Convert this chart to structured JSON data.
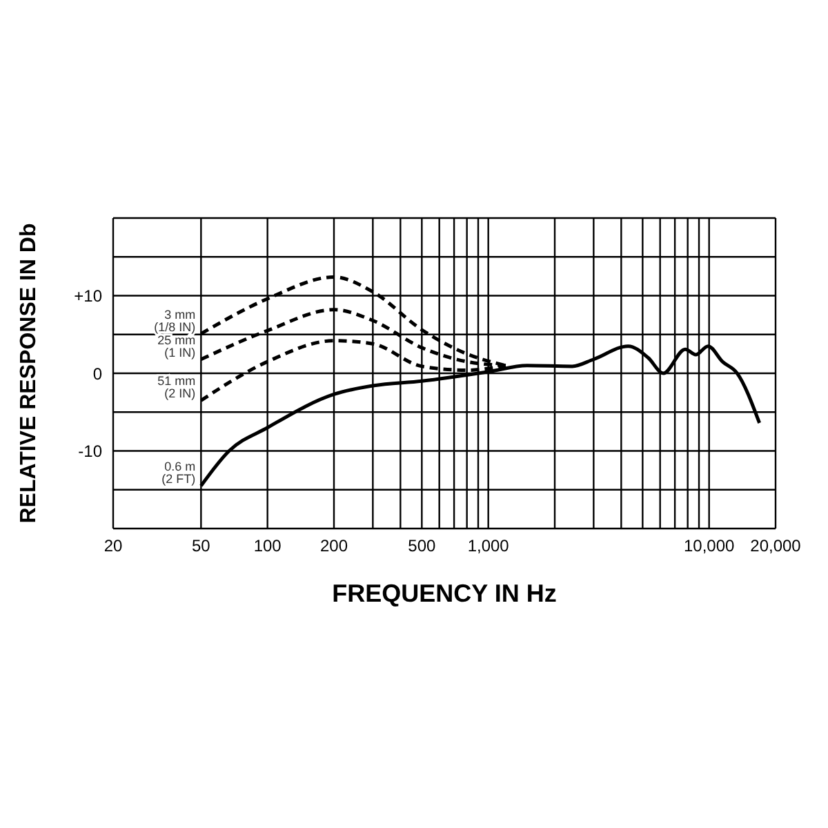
{
  "chart_data": {
    "type": "line",
    "xlabel": "FREQUENCY IN Hz",
    "ylabel": "RELATIVE RESPONSE IN Db",
    "log": "x",
    "grid": true,
    "marker": "none",
    "xlim": [
      20,
      20000
    ],
    "ylim": [
      -20,
      20
    ],
    "xticks": [
      20,
      50,
      100,
      200,
      {
        "value": 300,
        "label": null
      },
      {
        "value": 400,
        "label": null
      },
      500,
      {
        "value": 600,
        "label": null
      },
      {
        "value": 700,
        "label": null
      },
      {
        "value": 800,
        "label": null
      },
      {
        "value": 900,
        "label": null
      },
      {
        "value": 1000,
        "label": "1,000"
      },
      {
        "value": 2000,
        "label": null
      },
      {
        "value": 3000,
        "label": null
      },
      {
        "value": 4000,
        "label": null
      },
      {
        "value": 5000,
        "label": null
      },
      {
        "value": 6000,
        "label": null
      },
      {
        "value": 7000,
        "label": null
      },
      {
        "value": 8000,
        "label": null
      },
      {
        "value": 9000,
        "label": null
      },
      {
        "value": 10000,
        "label": "10,000"
      },
      {
        "value": 20000,
        "label": "20,000"
      }
    ],
    "yticks": [
      {
        "value": -20,
        "label": null
      },
      {
        "value": -15,
        "label": null
      },
      -10,
      {
        "value": -5,
        "label": null
      },
      0,
      {
        "value": 5,
        "label": null
      },
      {
        "value": 10,
        "label": "+10"
      },
      {
        "value": 15,
        "label": null
      },
      {
        "value": 20,
        "label": null
      }
    ],
    "series": [
      {
        "name": "3 mm (1/8 IN)",
        "color": "#000000",
        "line_style": "dashed",
        "x": [
          50,
          100,
          200,
          300,
          500,
          800,
          1200
        ],
        "values": [
          5.1,
          9.6,
          12.4,
          10.5,
          5.6,
          2.5,
          1
        ]
      },
      {
        "name": "25 mm (1 IN)",
        "color": "#000000",
        "line_style": "dashed",
        "x": [
          50,
          100,
          200,
          300,
          500,
          800,
          1200
        ],
        "values": [
          1.8,
          5.5,
          8.2,
          6.8,
          3.3,
          1.5,
          1
        ]
      },
      {
        "name": "51 mm (2 IN)",
        "color": "#000000",
        "line_style": "dashed",
        "x": [
          50,
          100,
          200,
          300,
          500,
          800,
          1200
        ],
        "values": [
          -3.5,
          1.5,
          4.2,
          3.8,
          0.9,
          0.4,
          1
        ]
      },
      {
        "name": "0.6 m (2 FT)",
        "color": "#000000",
        "line_style": "solid",
        "x": [
          50,
          67,
          100,
          200,
          300,
          500,
          1000,
          1500,
          2400,
          3000,
          4300,
          5300,
          6200,
          7800,
          8700,
          9900,
          11500,
          13400,
          16900
        ],
        "values": [
          -14.5,
          -10,
          -7,
          -2.7,
          -1.6,
          -1,
          0.2,
          1,
          0.9,
          1.8,
          3.5,
          2,
          0,
          3.1,
          2.4,
          3.5,
          1.5,
          0,
          -6.4
        ]
      }
    ]
  }
}
